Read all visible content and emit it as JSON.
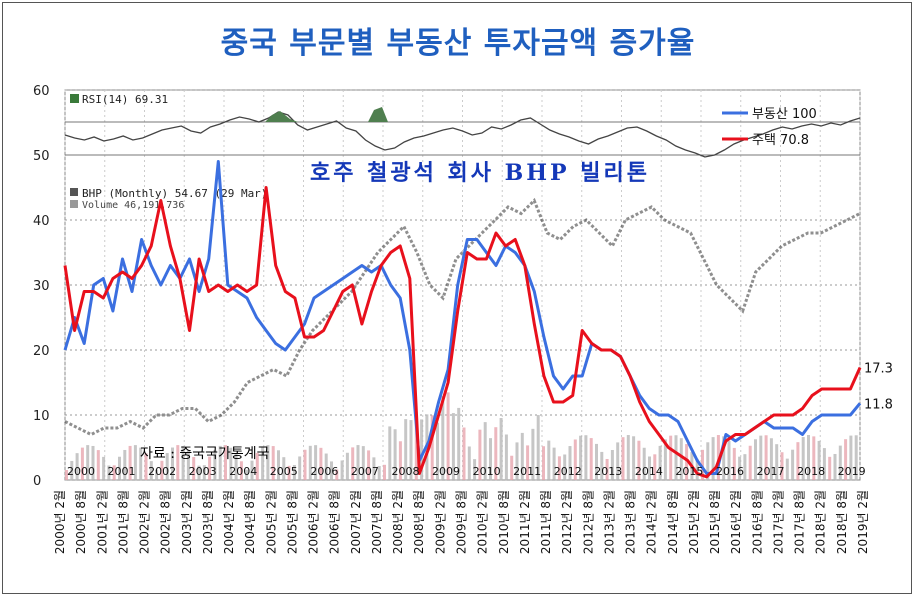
{
  "title": "중국 부문별 부동산 투자금액 증가율",
  "overlay": {
    "rsi_label": "RSI(14) 69.31",
    "bhp_label": "BHP (Monthly) 54.67 (29 Mar)",
    "volume_label": "Volume 46,191,736",
    "caption": "호주 철광석 회사 BHP 빌리톤",
    "source": "자료 : 중국국가통계국",
    "year_labels": [
      "2000",
      "2001",
      "2002",
      "2003",
      "2004",
      "2005",
      "2006",
      "2007",
      "2008",
      "2009",
      "2010",
      "2011",
      "2012",
      "2013",
      "2014",
      "2015",
      "2016",
      "2017",
      "2018",
      "2019"
    ]
  },
  "colors": {
    "residential": "#e8101c",
    "real_estate": "#3b6fe0",
    "bhp_up": "#333333",
    "bhp_down": "#cc2233",
    "title": "#1f5fbf"
  },
  "chart_data": {
    "type": "line",
    "title": "중국 부문별 부동산 투자금액 증가율",
    "ylim": [
      0,
      60
    ],
    "yticks": [
      0,
      10,
      20,
      30,
      40,
      50,
      60
    ],
    "x_labels": [
      "2000년 2월",
      "2000년 8월",
      "2001년 2월",
      "2001년 8월",
      "2002년 2월",
      "2002년 8월",
      "2003년 2월",
      "2003년 8월",
      "2004년 2월",
      "2004년 8월",
      "2005년 2월",
      "2005년 8월",
      "2006년 2월",
      "2006년 8월",
      "2007년 2월",
      "2007년 8월",
      "2008년 2월",
      "2008년 8월",
      "2009년 2월",
      "2009년 8월",
      "2010년 2월",
      "2010년 8월",
      "2011년 2월",
      "2011년 8월",
      "2012년 2월",
      "2012년 8월",
      "2013년 2월",
      "2013년 8월",
      "2014년 2월",
      "2014년 8월",
      "2015년 2월",
      "2015년 8월",
      "2016년 2월",
      "2016년 8월",
      "2017년 2월",
      "2017년 8월",
      "2018년 2월",
      "2018년 8월",
      "2019년 2월"
    ],
    "legend_position": "top-right",
    "series": [
      {
        "name": "부동산 100",
        "color": "#3b6fe0",
        "end_label": "11.8",
        "points": [
          [
            0,
            20
          ],
          [
            1,
            25
          ],
          [
            2,
            21
          ],
          [
            3,
            30
          ],
          [
            4,
            31
          ],
          [
            5,
            26
          ],
          [
            6,
            34
          ],
          [
            7,
            29
          ],
          [
            8,
            37
          ],
          [
            9,
            33
          ],
          [
            10,
            30
          ],
          [
            11,
            33
          ],
          [
            12,
            31
          ],
          [
            13,
            34
          ],
          [
            14,
            29
          ],
          [
            15,
            34
          ],
          [
            16,
            49
          ],
          [
            17,
            30
          ],
          [
            18,
            29
          ],
          [
            19,
            28
          ],
          [
            20,
            25
          ],
          [
            21,
            23
          ],
          [
            22,
            21
          ],
          [
            23,
            20
          ],
          [
            24,
            22
          ],
          [
            25,
            24
          ],
          [
            26,
            28
          ],
          [
            27,
            29
          ],
          [
            28,
            30
          ],
          [
            29,
            31
          ],
          [
            30,
            32
          ],
          [
            31,
            33
          ],
          [
            32,
            32
          ],
          [
            33,
            33
          ],
          [
            34,
            30
          ],
          [
            35,
            28
          ],
          [
            36,
            20
          ],
          [
            37,
            3
          ],
          [
            38,
            6
          ],
          [
            39,
            12
          ],
          [
            40,
            17
          ],
          [
            41,
            30
          ],
          [
            42,
            37
          ],
          [
            43,
            37
          ],
          [
            44,
            35
          ],
          [
            45,
            33
          ],
          [
            46,
            36
          ],
          [
            47,
            35
          ],
          [
            48,
            33
          ],
          [
            49,
            29
          ],
          [
            50,
            22
          ],
          [
            51,
            16
          ],
          [
            52,
            14
          ],
          [
            53,
            16
          ],
          [
            54,
            16
          ],
          [
            55,
            21
          ],
          [
            56,
            20
          ],
          [
            57,
            20
          ],
          [
            58,
            19
          ],
          [
            59,
            16
          ],
          [
            60,
            13
          ],
          [
            61,
            11
          ],
          [
            62,
            10
          ],
          [
            63,
            10
          ],
          [
            64,
            9
          ],
          [
            65,
            6
          ],
          [
            66,
            3
          ],
          [
            67,
            1
          ],
          [
            68,
            1
          ],
          [
            69,
            7
          ],
          [
            70,
            6
          ],
          [
            71,
            7
          ],
          [
            72,
            8
          ],
          [
            73,
            9
          ],
          [
            74,
            8
          ],
          [
            75,
            8
          ],
          [
            76,
            8
          ],
          [
            77,
            7
          ],
          [
            78,
            9
          ],
          [
            79,
            10
          ],
          [
            80,
            10
          ],
          [
            81,
            10
          ],
          [
            82,
            10
          ],
          [
            83,
            11.8
          ]
        ]
      },
      {
        "name": "주택 70.8",
        "color": "#e8101c",
        "end_label": "17.3",
        "points": [
          [
            0,
            33
          ],
          [
            1,
            23
          ],
          [
            2,
            29
          ],
          [
            3,
            29
          ],
          [
            4,
            28
          ],
          [
            5,
            31
          ],
          [
            6,
            32
          ],
          [
            7,
            31
          ],
          [
            8,
            33
          ],
          [
            9,
            36
          ],
          [
            10,
            43
          ],
          [
            11,
            36
          ],
          [
            12,
            31
          ],
          [
            13,
            23
          ],
          [
            14,
            34
          ],
          [
            15,
            29
          ],
          [
            16,
            30
          ],
          [
            17,
            29
          ],
          [
            18,
            30
          ],
          [
            19,
            29
          ],
          [
            20,
            30
          ],
          [
            21,
            45
          ],
          [
            22,
            33
          ],
          [
            23,
            29
          ],
          [
            24,
            28
          ],
          [
            25,
            22
          ],
          [
            26,
            22
          ],
          [
            27,
            23
          ],
          [
            28,
            26
          ],
          [
            29,
            29
          ],
          [
            30,
            30
          ],
          [
            31,
            24
          ],
          [
            32,
            29
          ],
          [
            33,
            33
          ],
          [
            34,
            35
          ],
          [
            35,
            36
          ],
          [
            36,
            31
          ],
          [
            37,
            1
          ],
          [
            38,
            5
          ],
          [
            39,
            10
          ],
          [
            40,
            15
          ],
          [
            41,
            26
          ],
          [
            42,
            35
          ],
          [
            43,
            34
          ],
          [
            44,
            34
          ],
          [
            45,
            38
          ],
          [
            46,
            36
          ],
          [
            47,
            37
          ],
          [
            48,
            33
          ],
          [
            49,
            24
          ],
          [
            50,
            16
          ],
          [
            51,
            12
          ],
          [
            52,
            12
          ],
          [
            53,
            13
          ],
          [
            54,
            23
          ],
          [
            55,
            21
          ],
          [
            56,
            20
          ],
          [
            57,
            20
          ],
          [
            58,
            19
          ],
          [
            59,
            16
          ],
          [
            60,
            12
          ],
          [
            61,
            9
          ],
          [
            62,
            7
          ],
          [
            63,
            5
          ],
          [
            64,
            4
          ],
          [
            65,
            3
          ],
          [
            66,
            1
          ],
          [
            67,
            0.5
          ],
          [
            68,
            2
          ],
          [
            69,
            6
          ],
          [
            70,
            7
          ],
          [
            71,
            7
          ],
          [
            72,
            8
          ],
          [
            73,
            9
          ],
          [
            74,
            10
          ],
          [
            75,
            10
          ],
          [
            76,
            10
          ],
          [
            77,
            11
          ],
          [
            78,
            13
          ],
          [
            79,
            14
          ],
          [
            80,
            14
          ],
          [
            81,
            14
          ],
          [
            82,
            14
          ],
          [
            83,
            17.3
          ]
        ]
      }
    ]
  }
}
